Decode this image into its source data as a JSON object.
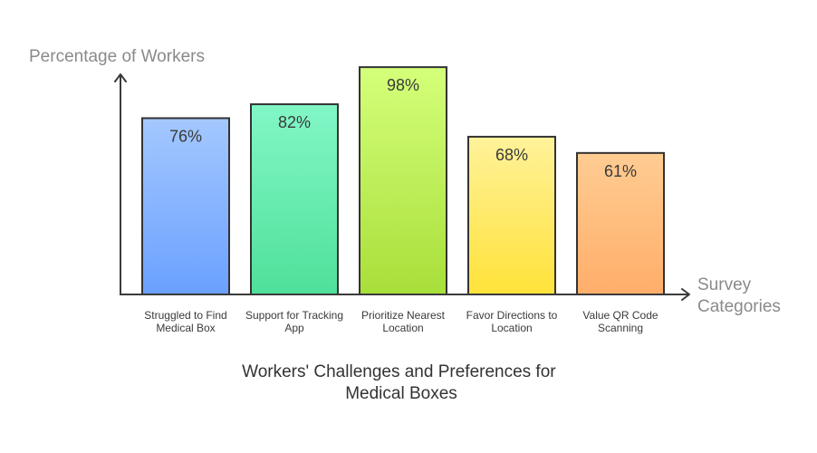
{
  "chart_data": {
    "type": "bar",
    "title": "Workers' Challenges and Preferences for Medical Boxes",
    "title_lines": [
      "Workers' Challenges and Preferences for",
      "Medical Boxes"
    ],
    "ylabel": "Percentage of Workers",
    "xlabel": "Survey Categories",
    "xlabel_lines": [
      "Survey",
      "Categories"
    ],
    "ylim": [
      0,
      100
    ],
    "grid": false,
    "legend": "none",
    "categories": [
      "Struggled to Find Medical Box",
      "Support for Tracking App",
      "Prioritize Nearest Location",
      "Favor Directions to Location",
      "Value QR Code Scanning"
    ],
    "category_lines": [
      [
        "Struggled to Find",
        "Medical Box"
      ],
      [
        "Support for Tracking",
        "App"
      ],
      [
        "Prioritize Nearest",
        "Location"
      ],
      [
        "Favor Directions to",
        "Location"
      ],
      [
        "Value QR Code",
        "Scanning"
      ]
    ],
    "values": [
      76,
      82,
      98,
      68,
      61
    ],
    "data_labels": [
      "76%",
      "82%",
      "98%",
      "68%",
      "61%"
    ],
    "colors": [
      {
        "top": "#a4c8ff",
        "bottom": "#6aa0ff"
      },
      {
        "top": "#82f7c6",
        "bottom": "#4fe09a"
      },
      {
        "top": "#d4ff7a",
        "bottom": "#a8df3a"
      },
      {
        "top": "#fff29a",
        "bottom": "#ffe23a"
      },
      {
        "top": "#ffcc92",
        "bottom": "#ffae6a"
      }
    ]
  }
}
